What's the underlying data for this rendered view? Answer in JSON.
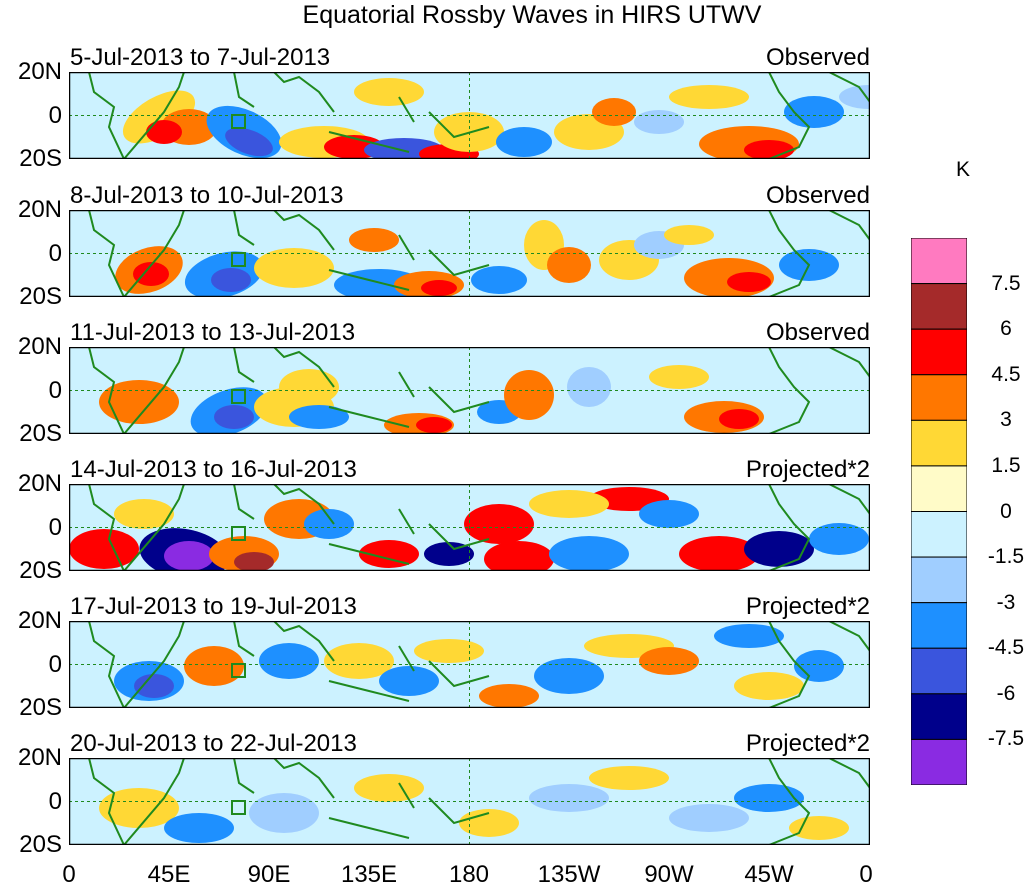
{
  "chart_data": {
    "type": "heatmap",
    "title": "Equatorial Rossby Waves in HIRS UTWV",
    "xlabel": "",
    "ylabel": "",
    "x_ticks": [
      "0",
      "45E",
      "90E",
      "135E",
      "180",
      "135W",
      "90W",
      "45W",
      "0"
    ],
    "y_ticks": [
      "20N",
      "0",
      "20S"
    ],
    "colorbar": {
      "unit": "K",
      "levels": [
        "7.5",
        "6",
        "4.5",
        "3",
        "1.5",
        "0",
        "-1.5",
        "-3",
        "-4.5",
        "-6",
        "-7.5"
      ],
      "colors": [
        "#ff7ac0",
        "#a52a2a",
        "#ff0000",
        "#ff7700",
        "#ffd835",
        "#fffbc8",
        "#ccf2ff",
        "#a0ceff",
        "#1e90ff",
        "#3a55dd",
        "#00008b",
        "#8a2be2"
      ]
    },
    "panels": [
      {
        "date_range": "5-Jul-2013 to 7-Jul-2013",
        "kind": "Observed"
      },
      {
        "date_range": "8-Jul-2013 to 10-Jul-2013",
        "kind": "Observed"
      },
      {
        "date_range": "11-Jul-2013 to 13-Jul-2013",
        "kind": "Observed"
      },
      {
        "date_range": "14-Jul-2013 to 16-Jul-2013",
        "kind": "Projected*2"
      },
      {
        "date_range": "17-Jul-2013 to 19-Jul-2013",
        "kind": "Projected*2"
      },
      {
        "date_range": "20-Jul-2013 to 22-Jul-2013",
        "kind": "Projected*2"
      }
    ]
  }
}
